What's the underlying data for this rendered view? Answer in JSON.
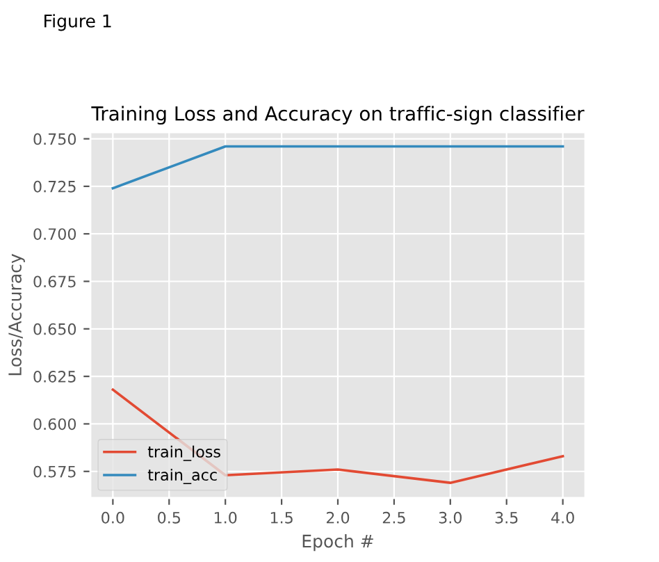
{
  "chart_data": {
    "type": "line",
    "title": "Training Loss and Accuracy on traffic-sign classifier",
    "xlabel": "Epoch #",
    "ylabel": "Loss/Accuracy",
    "x": [
      0,
      1,
      2,
      3,
      4
    ],
    "series": [
      {
        "name": "train_loss",
        "color": "#e24a33",
        "values": [
          0.618,
          0.573,
          0.576,
          0.569,
          0.583
        ]
      },
      {
        "name": "train_acc",
        "color": "#348abd",
        "values": [
          0.724,
          0.746,
          0.746,
          0.746,
          0.746
        ]
      }
    ],
    "xlim": [
      -0.2,
      4.2
    ],
    "xticks": [
      {
        "value": 0,
        "label": "0.0"
      },
      0.5,
      {
        "value": 1,
        "label": "1.0"
      },
      1.5,
      {
        "value": 2,
        "label": "2.0"
      },
      2.5,
      {
        "value": 3,
        "label": "3.0"
      },
      3.5,
      {
        "value": 4,
        "label": "4.0"
      }
    ],
    "ylim": [
      0.561,
      0.7535
    ],
    "yticks": [
      0.575,
      {
        "value": 0.6,
        "label": "0.600"
      },
      0.625,
      {
        "value": 0.65,
        "label": "0.650"
      },
      0.675,
      {
        "value": 0.7,
        "label": "0.700"
      },
      0.725,
      {
        "value": 0.75,
        "label": "0.750"
      }
    ],
    "grid": true,
    "legend": "lower left",
    "marker": "none",
    "line_style": "solid",
    "annotations": [
      "Figure 1"
    ]
  }
}
